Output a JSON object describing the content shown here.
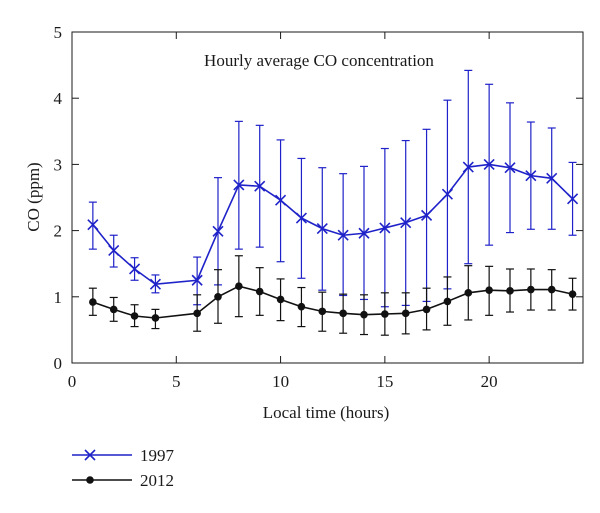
{
  "chart_data": {
    "type": "line",
    "title": "Hourly average CO concentration",
    "xlabel": "Local time (hours)",
    "ylabel": "CO (ppm)",
    "xlim": [
      0,
      24.5
    ],
    "ylim": [
      0,
      5
    ],
    "xticks": [
      0,
      5,
      10,
      15,
      20
    ],
    "yticks": [
      0,
      1,
      2,
      3,
      4,
      5
    ],
    "grid": false,
    "legend_position": "bottom-left, below plot",
    "series": [
      {
        "name": "1997",
        "color": "#1f22c8",
        "marker": "x",
        "x": [
          1,
          2,
          3,
          4,
          6,
          7,
          8,
          9,
          10,
          11,
          12,
          13,
          14,
          15,
          16,
          17,
          18,
          19,
          20,
          21,
          22,
          23,
          24
        ],
        "y": [
          2.09,
          1.7,
          1.42,
          1.19,
          1.25,
          1.99,
          2.69,
          2.67,
          2.46,
          2.19,
          2.03,
          1.93,
          1.96,
          2.04,
          2.12,
          2.23,
          2.55,
          2.96,
          3.0,
          2.95,
          2.83,
          2.79,
          2.48
        ],
        "y_low": [
          1.72,
          1.45,
          1.25,
          1.06,
          0.88,
          1.18,
          1.72,
          1.75,
          1.53,
          1.28,
          1.1,
          1.02,
          0.96,
          0.85,
          0.87,
          0.93,
          1.12,
          1.5,
          1.78,
          1.97,
          2.02,
          2.02,
          1.93
        ],
        "y_high": [
          2.43,
          1.93,
          1.59,
          1.33,
          1.6,
          2.8,
          3.65,
          3.59,
          3.37,
          3.09,
          2.95,
          2.86,
          2.97,
          3.24,
          3.36,
          3.53,
          3.97,
          4.42,
          4.21,
          3.93,
          3.64,
          3.55,
          3.03
        ]
      },
      {
        "name": "2012",
        "color": "#111111",
        "marker": "dot",
        "x": [
          1,
          2,
          3,
          4,
          6,
          7,
          8,
          9,
          10,
          11,
          12,
          13,
          14,
          15,
          16,
          17,
          18,
          19,
          20,
          21,
          22,
          23,
          24
        ],
        "y": [
          0.92,
          0.81,
          0.71,
          0.68,
          0.75,
          1.0,
          1.16,
          1.08,
          0.96,
          0.85,
          0.78,
          0.75,
          0.73,
          0.74,
          0.75,
          0.81,
          0.93,
          1.06,
          1.1,
          1.09,
          1.11,
          1.11,
          1.04
        ],
        "y_low": [
          0.72,
          0.63,
          0.55,
          0.52,
          0.48,
          0.6,
          0.7,
          0.72,
          0.64,
          0.55,
          0.48,
          0.45,
          0.43,
          0.42,
          0.44,
          0.5,
          0.57,
          0.65,
          0.72,
          0.77,
          0.8,
          0.8,
          0.8
        ],
        "y_high": [
          1.13,
          0.99,
          0.88,
          0.81,
          1.03,
          1.41,
          1.62,
          1.44,
          1.27,
          1.14,
          1.07,
          1.04,
          1.03,
          1.06,
          1.06,
          1.13,
          1.3,
          1.47,
          1.46,
          1.42,
          1.42,
          1.41,
          1.28
        ]
      }
    ]
  }
}
